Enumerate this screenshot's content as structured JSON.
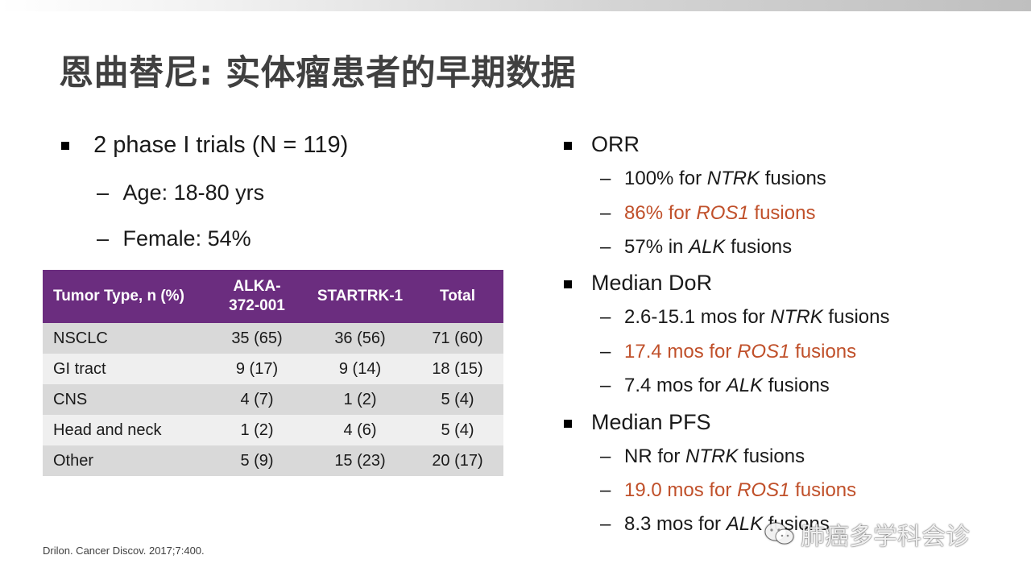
{
  "title": "恩曲替尼: 实体瘤患者的早期数据",
  "left": {
    "bullet": "2 phase I trials (N = 119)",
    "subs": [
      "Age: 18-80 yrs",
      "Female: 54%"
    ]
  },
  "table": {
    "headers": [
      "Tumor Type, n (%)",
      "ALKA-372-001",
      "STARTRK-1",
      "Total"
    ],
    "header_col2_line1": "ALKA-",
    "header_col2_line2": "372-001",
    "rows": [
      [
        "NSCLC",
        "35 (65)",
        "36 (56)",
        "71 (60)"
      ],
      [
        "GI tract",
        "9 (17)",
        "9 (14)",
        "18 (15)"
      ],
      [
        "CNS",
        "4 (7)",
        "1 (2)",
        "5 (4)"
      ],
      [
        "Head and neck",
        "1 (2)",
        "4 (6)",
        "5 (4)"
      ],
      [
        "Other",
        "5 (9)",
        "15 (23)",
        "20 (17)"
      ]
    ]
  },
  "right": {
    "sections": [
      {
        "label": "ORR",
        "items": [
          {
            "pre": "100% for ",
            "em": "NTRK",
            "post": " fusions"
          },
          {
            "pre": "86% for ",
            "em": "ROS1",
            "post": " fusions"
          },
          {
            "pre": "57% in ",
            "em": "ALK",
            "post": " fusions"
          }
        ]
      },
      {
        "label": "Median DoR",
        "items": [
          {
            "pre": "2.6-15.1 mos for ",
            "em": "NTRK",
            "post": " fusions"
          },
          {
            "pre": "17.4 mos for ",
            "em": "ROS1",
            "post": " fusions"
          },
          {
            "pre": "7.4 mos for ",
            "em": "ALK",
            "post": " fusions"
          }
        ]
      },
      {
        "label": "Median PFS",
        "items": [
          {
            "pre": "NR for ",
            "em": "NTRK",
            "post": " fusions"
          },
          {
            "pre": "19.0 mos for ",
            "em": "ROS1",
            "post": " fusions"
          },
          {
            "pre": "8.3 mos for ",
            "em": "ALK",
            "post": " fusions"
          }
        ]
      }
    ]
  },
  "dash_char": "–",
  "citation": "Drilon. Cancer Discov. 2017;7:400.",
  "watermark": "肺癌多学科会诊",
  "colors": {
    "header": "#6b2d7f",
    "highlight": "#c0502a",
    "row_dark": "#d9d9d9",
    "row_light": "#efefef"
  }
}
